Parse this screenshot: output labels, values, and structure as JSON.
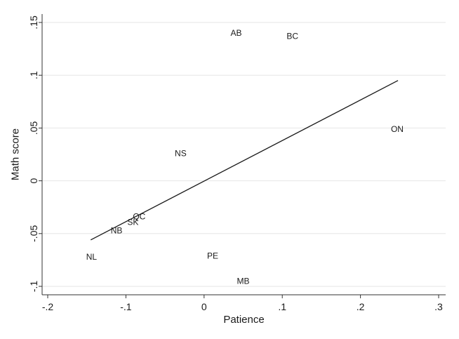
{
  "chart_data": {
    "type": "scatter",
    "title": "",
    "xlabel": "Patience",
    "ylabel": "Math score",
    "xlim": [
      -0.2,
      0.3
    ],
    "ylim": [
      -0.1,
      0.15
    ],
    "xticks": [
      -0.2,
      -0.1,
      0,
      0.1,
      0.2,
      0.3
    ],
    "xtick_labels": [
      "-.2",
      "-.1",
      "0",
      ".1",
      ".2",
      ".3"
    ],
    "yticks": [
      -0.1,
      -0.05,
      0,
      0.05,
      0.1,
      0.15
    ],
    "ytick_labels": [
      "-.1",
      "-.05",
      "0",
      ".05",
      ".1",
      ".15"
    ],
    "grid": "horizontal",
    "points": [
      {
        "label": "AB",
        "x": 0.041,
        "y": 0.14
      },
      {
        "label": "BC",
        "x": 0.113,
        "y": 0.137
      },
      {
        "label": "ON",
        "x": 0.247,
        "y": 0.049
      },
      {
        "label": "NS",
        "x": -0.03,
        "y": 0.026
      },
      {
        "label": "QC",
        "x": -0.083,
        "y": -0.034
      },
      {
        "label": "SK",
        "x": -0.091,
        "y": -0.039
      },
      {
        "label": "NB",
        "x": -0.112,
        "y": -0.047
      },
      {
        "label": "NL",
        "x": -0.144,
        "y": -0.072
      },
      {
        "label": "PE",
        "x": 0.011,
        "y": -0.071
      },
      {
        "label": "MB",
        "x": 0.05,
        "y": -0.095
      }
    ],
    "fit_line": {
      "x": [
        -0.145,
        0.248
      ],
      "y": [
        -0.056,
        0.095
      ]
    }
  }
}
